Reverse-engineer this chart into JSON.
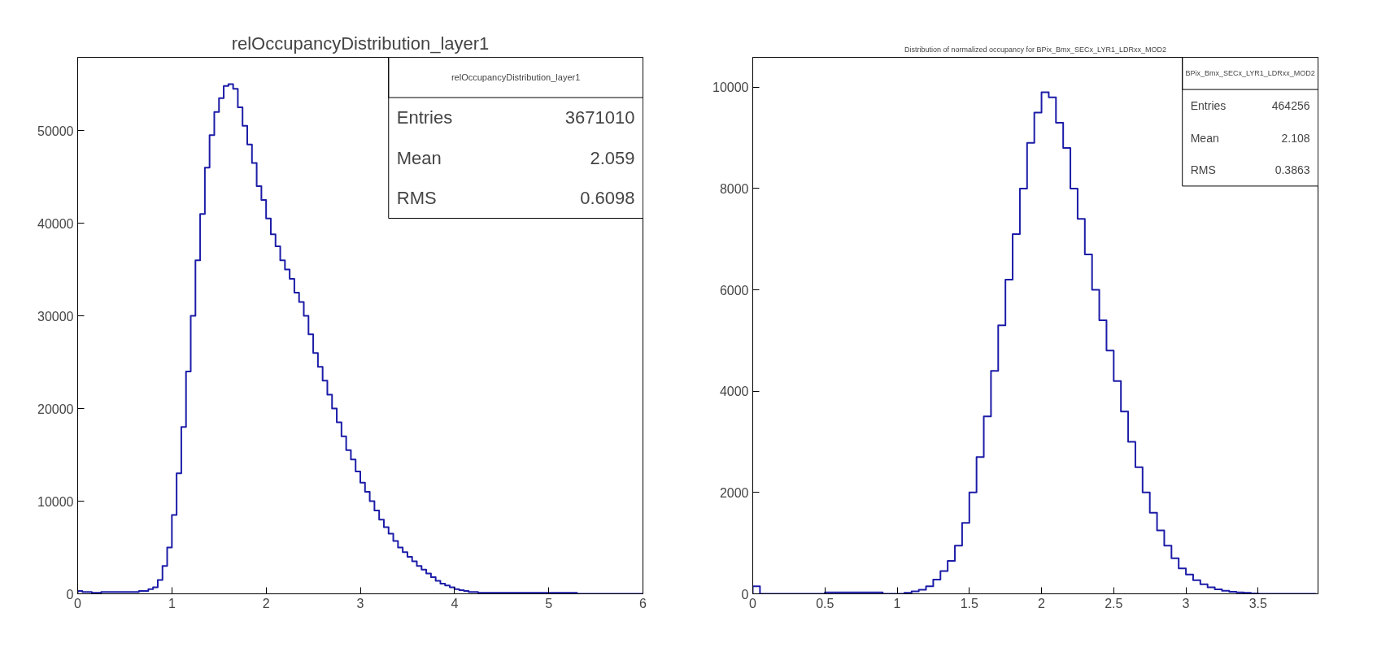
{
  "chart_data": [
    {
      "type": "histogram",
      "title": "relOccupancyDistribution_layer1",
      "color": "#1c1ca8",
      "bins": [
        0,
        0.05,
        0.1,
        0.15,
        0.2,
        0.25,
        0.3,
        0.35,
        0.4,
        0.45,
        0.5,
        0.55,
        0.6,
        0.65,
        0.7,
        0.75,
        0.8,
        0.85,
        0.9,
        0.95,
        1,
        1.05,
        1.1,
        1.15,
        1.2,
        1.25,
        1.3,
        1.35,
        1.4,
        1.45,
        1.5,
        1.55,
        1.6,
        1.65,
        1.7,
        1.75,
        1.8,
        1.85,
        1.9,
        1.95,
        2,
        2.05,
        2.1,
        2.15,
        2.2,
        2.25,
        2.3,
        2.35,
        2.4,
        2.45,
        2.5,
        2.55,
        2.6,
        2.65,
        2.7,
        2.75,
        2.8,
        2.85,
        2.9,
        2.95,
        3,
        3.05,
        3.1,
        3.15,
        3.2,
        3.25,
        3.3,
        3.35,
        3.4,
        3.45,
        3.5,
        3.55,
        3.6,
        3.65,
        3.7,
        3.75,
        3.8,
        3.85,
        3.9,
        3.95,
        4,
        4.05,
        4.1,
        4.15,
        4.2,
        4.25,
        4.3,
        4.35,
        4.4,
        4.45,
        4.5,
        4.55,
        4.6,
        4.65,
        4.7,
        4.75,
        4.8,
        4.85,
        4.9,
        4.95,
        5,
        5.05,
        5.1,
        5.15,
        5.2,
        5.25,
        5.3,
        5.35,
        5.4,
        5.45,
        5.5,
        5.55,
        5.6,
        5.65,
        5.7,
        5.75,
        5.8,
        5.85,
        5.9,
        5.95,
        6
      ],
      "values": [
        300,
        200,
        200,
        100,
        100,
        200,
        200,
        200,
        200,
        200,
        200,
        200,
        200,
        300,
        300,
        500,
        700,
        1500,
        3000,
        5000,
        8500,
        13000,
        18000,
        24000,
        30000,
        36000,
        41000,
        46000,
        49500,
        52000,
        53500,
        54800,
        55000,
        54500,
        52500,
        50500,
        48500,
        46500,
        44000,
        42500,
        40500,
        38800,
        37500,
        36000,
        35000,
        34000,
        32500,
        31500,
        30000,
        28000,
        26000,
        24500,
        23000,
        21500,
        20000,
        18500,
        17000,
        15500,
        14500,
        13200,
        12000,
        11000,
        10000,
        9000,
        8000,
        7200,
        6500,
        5700,
        5000,
        4500,
        4000,
        3500,
        3000,
        2600,
        2200,
        1800,
        1400,
        1100,
        900,
        700,
        500,
        400,
        300,
        200,
        200,
        100,
        100,
        100,
        100,
        100,
        100,
        100,
        100,
        100,
        100,
        100,
        100,
        100,
        100,
        100,
        100,
        100,
        100,
        100,
        100,
        100,
        0,
        0,
        0,
        0,
        0,
        0,
        0,
        0,
        0,
        0,
        0,
        0,
        0,
        0
      ],
      "xlim": [
        0,
        6
      ],
      "xticks": [
        0,
        1,
        2,
        3,
        4,
        5,
        6
      ],
      "ylim": [
        0,
        57900
      ],
      "yticks": [
        0,
        10000,
        20000,
        30000,
        40000,
        50000
      ],
      "annotations": [
        "relOccupancyDistribution_layer1",
        "Entries",
        "3671010",
        "Mean",
        "2.059",
        "RMS",
        "0.6098"
      ]
    },
    {
      "type": "histogram",
      "title": "Distribution of normalized occupancy for BPix_Bmx_SECx_LYR1_LDRxx_MOD2",
      "color": "#1c1ca8",
      "bins": [
        0,
        0.05,
        0.1,
        0.15,
        0.2,
        0.25,
        0.3,
        0.35,
        0.4,
        0.45,
        0.5,
        0.55,
        0.6,
        0.65,
        0.7,
        0.75,
        0.8,
        0.85,
        0.9,
        0.95,
        1,
        1.05,
        1.1,
        1.15,
        1.2,
        1.25,
        1.3,
        1.35,
        1.4,
        1.45,
        1.5,
        1.55,
        1.6,
        1.65,
        1.7,
        1.75,
        1.8,
        1.85,
        1.9,
        1.95,
        2,
        2.05,
        2.1,
        2.15,
        2.2,
        2.25,
        2.3,
        2.35,
        2.4,
        2.45,
        2.5,
        2.55,
        2.6,
        2.65,
        2.7,
        2.75,
        2.8,
        2.85,
        2.9,
        2.95,
        3,
        3.05,
        3.1,
        3.15,
        3.2,
        3.25,
        3.3,
        3.35,
        3.4,
        3.45,
        3.5,
        3.55,
        3.6,
        3.65,
        3.7,
        3.75,
        3.8,
        3.85,
        3.9
      ],
      "values": [
        150,
        0,
        0,
        0,
        0,
        0,
        0,
        0,
        0,
        0,
        30,
        30,
        30,
        30,
        30,
        30,
        30,
        30,
        0,
        0,
        0,
        20,
        50,
        80,
        150,
        280,
        450,
        650,
        950,
        1400,
        2000,
        2700,
        3500,
        4400,
        5300,
        6200,
        7100,
        8000,
        8900,
        9500,
        9900,
        9800,
        9300,
        8800,
        8000,
        7400,
        6700,
        6000,
        5400,
        4800,
        4200,
        3600,
        3000,
        2500,
        2000,
        1600,
        1250,
        950,
        700,
        500,
        380,
        270,
        190,
        130,
        90,
        60,
        40,
        30,
        20,
        10,
        0,
        0,
        0,
        0,
        0,
        0,
        0,
        0
      ],
      "xlim": [
        0,
        3.915
      ],
      "xticks": [
        0,
        {
          "value": 0.5,
          "label": "0.5"
        },
        1,
        {
          "value": 1.5,
          "label": "1.5"
        },
        2,
        {
          "value": 2.5,
          "label": "2.5"
        },
        3,
        {
          "value": 3.5,
          "label": "3.5"
        }
      ],
      "ylim": [
        0,
        10590
      ],
      "yticks": [
        0,
        2000,
        4000,
        6000,
        8000,
        10000
      ],
      "annotations": [
        "BPix_Bmx_SECx_LYR1_LDRxx_MOD2",
        "Entries",
        "464256",
        "Mean",
        "2.108",
        "RMS",
        "0.3863"
      ]
    }
  ]
}
